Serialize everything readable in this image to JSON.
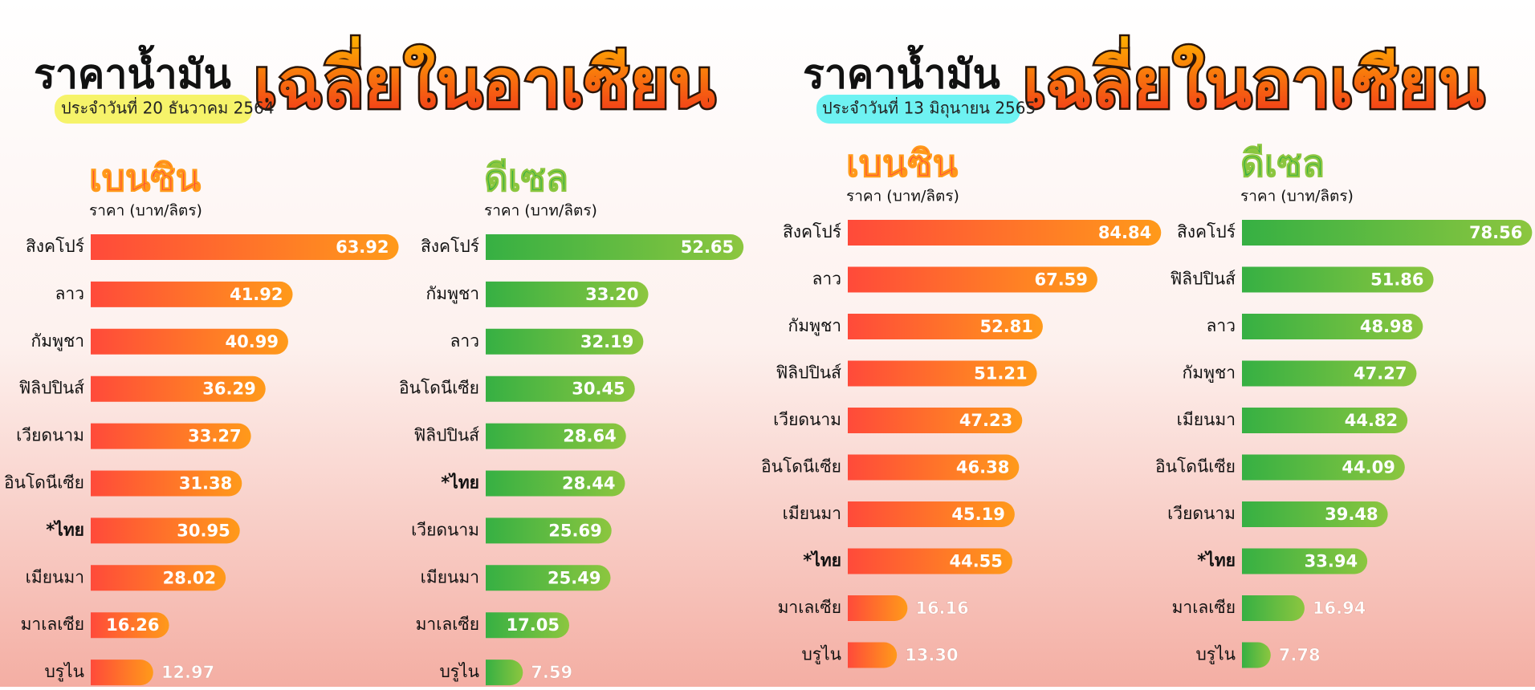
{
  "panels": [
    {
      "title": "ราคาน้ำมัน",
      "headline": "เฉลี่ยในอาเซียน",
      "date": "ประจำวันที่ 20 ธันวาคม 2564"
    },
    {
      "title": "ราคาน้ำมัน",
      "headline": "เฉลี่ยในอาเซียน",
      "date": "ประจำวันที่ 13 มิถุนายน 2565"
    }
  ],
  "chart_data": [
    {
      "type": "bar",
      "orientation": "horizontal",
      "title": "เบนซิน",
      "subtitle": "ราคา (บาท/ลิตร)",
      "colors": [
        "#ff4a3a",
        "#ff9a1a"
      ],
      "categories": [
        "สิงคโปร์",
        "ลาว",
        "กัมพูชา",
        "ฟิลิปปินส์",
        "เวียดนาม",
        "อินโดนีเซีย",
        "*ไทย",
        "เมียนมา",
        "มาเลเซีย",
        "บรูไน"
      ],
      "values": [
        63.92,
        41.92,
        40.99,
        36.29,
        33.27,
        31.38,
        30.95,
        28.02,
        16.26,
        12.97
      ],
      "value_labels": [
        "63.92",
        "41.92",
        "40.99",
        "36.29",
        "33.27",
        "31.38",
        "30.95",
        "28.02",
        "16.26",
        "12.97"
      ]
    },
    {
      "type": "bar",
      "orientation": "horizontal",
      "title": "ดีเซล",
      "subtitle": "ราคา (บาท/ลิตร)",
      "colors": [
        "#36b043",
        "#8cc63f"
      ],
      "categories": [
        "สิงคโปร์",
        "กัมพูชา",
        "ลาว",
        "อินโดนีเซีย",
        "ฟิลิปปินส์",
        "*ไทย",
        "เวียดนาม",
        "เมียนมา",
        "มาเลเซีย",
        "บรูไน"
      ],
      "values": [
        52.65,
        33.2,
        32.19,
        30.45,
        28.64,
        28.44,
        25.69,
        25.49,
        17.05,
        7.59
      ],
      "value_labels": [
        "52.65",
        "33.20",
        "32.19",
        "30.45",
        "28.64",
        "28.44",
        "25.69",
        "25.49",
        "17.05",
        "7.59"
      ]
    },
    {
      "type": "bar",
      "orientation": "horizontal",
      "title": "เบนซิน",
      "subtitle": "ราคา (บาท/ลิตร)",
      "colors": [
        "#ff4a3a",
        "#ff9a1a"
      ],
      "categories": [
        "สิงคโปร์",
        "ลาว",
        "กัมพูชา",
        "ฟิลิปปินส์",
        "เวียดนาม",
        "อินโดนีเซีย",
        "เมียนมา",
        "*ไทย",
        "มาเลเซีย",
        "บรูไน"
      ],
      "values": [
        84.84,
        67.59,
        52.81,
        51.21,
        47.23,
        46.38,
        45.19,
        44.55,
        16.16,
        13.3
      ],
      "value_labels": [
        "84.84",
        "67.59",
        "52.81",
        "51.21",
        "47.23",
        "46.38",
        "45.19",
        "44.55",
        "16.16",
        "13.30"
      ]
    },
    {
      "type": "bar",
      "orientation": "horizontal",
      "title": "ดีเซล",
      "subtitle": "ราคา (บาท/ลิตร)",
      "colors": [
        "#36b043",
        "#8cc63f"
      ],
      "categories": [
        "สิงคโปร์",
        "ฟิลิปปินส์",
        "ลาว",
        "กัมพูชา",
        "เมียนมา",
        "อินโดนีเซีย",
        "เวียดนาม",
        "*ไทย",
        "มาเลเซีย",
        "บรูไน"
      ],
      "values": [
        78.56,
        51.86,
        48.98,
        47.27,
        44.82,
        44.09,
        39.48,
        33.94,
        16.94,
        7.78
      ],
      "value_labels": [
        "78.56",
        "51.86",
        "48.98",
        "47.27",
        "44.82",
        "44.09",
        "39.48",
        "33.94",
        "16.94",
        "7.78"
      ]
    }
  ]
}
